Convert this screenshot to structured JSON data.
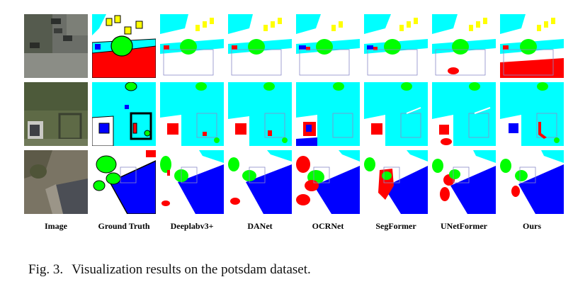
{
  "figure": {
    "columns": [
      "Image",
      "Ground Truth",
      "Deeplabv3+",
      "DANet",
      "OCRNet",
      "SegFormer",
      "UNetFormer",
      "Ours"
    ],
    "rows": 3,
    "palette": {
      "impervious_surface": "#ffffff",
      "building": "#0000ff",
      "low_vegetation": "#00ffff",
      "tree": "#00ff00",
      "car": "#ffff00",
      "clutter": "#ff0000",
      "boundary": "#000000",
      "highlight_box": "#8a8ac8"
    },
    "caption_number": "Fig. 3.",
    "caption_text": "Visualization results on the potsdam dataset."
  }
}
